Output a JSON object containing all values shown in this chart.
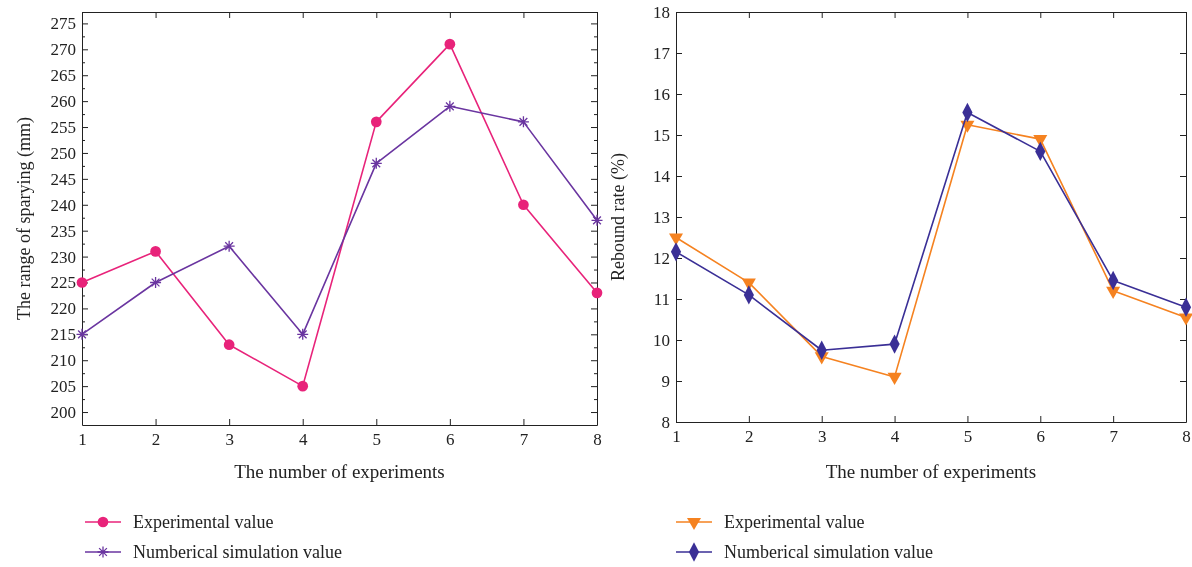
{
  "chart_data": [
    {
      "type": "line",
      "xlabel": "The number of experiments",
      "ylabel": "The range of sparying (mm)",
      "x": [
        1,
        2,
        3,
        4,
        5,
        6,
        7,
        8
      ],
      "xlim": [
        1,
        8
      ],
      "xticks": [
        1,
        2,
        3,
        4,
        5,
        6,
        7,
        8
      ],
      "ylim": [
        197.5,
        277.2
      ],
      "yticks": [
        200,
        {
          "value": 202.5,
          "label": null
        },
        205,
        {
          "value": 207.5,
          "label": null
        },
        210,
        {
          "value": 212.5,
          "label": null
        },
        215,
        {
          "value": 217.5,
          "label": null
        },
        220,
        {
          "value": 222.5,
          "label": null
        },
        225,
        {
          "value": 227.5,
          "label": null
        },
        230,
        {
          "value": 232.5,
          "label": null
        },
        235,
        {
          "value": 237.5,
          "label": null
        },
        240,
        {
          "value": 242.5,
          "label": null
        },
        245,
        {
          "value": 247.5,
          "label": null
        },
        250,
        {
          "value": 252.5,
          "label": null
        },
        255,
        {
          "value": 257.5,
          "label": null
        },
        260,
        {
          "value": 262.5,
          "label": null
        },
        265,
        {
          "value": 267.5,
          "label": null
        },
        270,
        {
          "value": 272.5,
          "label": null
        },
        275
      ],
      "legend": "bottom",
      "grid": false,
      "series": [
        {
          "name": "Experimental value",
          "color": "#e8237a",
          "marker": "circle",
          "values": [
            225,
            231,
            213,
            205,
            256,
            271,
            240,
            223
          ]
        },
        {
          "name": "Numberical simulation value",
          "color": "#6a35a0",
          "marker": "cross",
          "values": [
            215,
            225,
            232,
            215,
            248,
            259,
            256,
            237
          ]
        }
      ]
    },
    {
      "type": "line",
      "xlabel": "The number of experiments",
      "ylabel": "Rebound rate (%)",
      "x": [
        1,
        2,
        3,
        4,
        5,
        6,
        7,
        8
      ],
      "xlim": [
        1,
        8
      ],
      "xticks": [
        1,
        2,
        3,
        4,
        5,
        6,
        7,
        8
      ],
      "ylim": [
        8,
        18
      ],
      "yticks": [
        8,
        9,
        10,
        11,
        12,
        13,
        14,
        15,
        16,
        17,
        18
      ],
      "legend": "bottom",
      "grid": false,
      "series": [
        {
          "name": "Experimental value",
          "color": "#f58220",
          "marker": "triangle",
          "values": [
            12.5,
            11.4,
            9.6,
            9.1,
            15.25,
            14.9,
            11.2,
            10.55
          ]
        },
        {
          "name": "Numberical simulation value",
          "color": "#3a2f96",
          "marker": "diamond",
          "values": [
            12.15,
            11.1,
            9.75,
            9.9,
            15.55,
            14.6,
            11.45,
            10.8
          ]
        }
      ]
    }
  ]
}
